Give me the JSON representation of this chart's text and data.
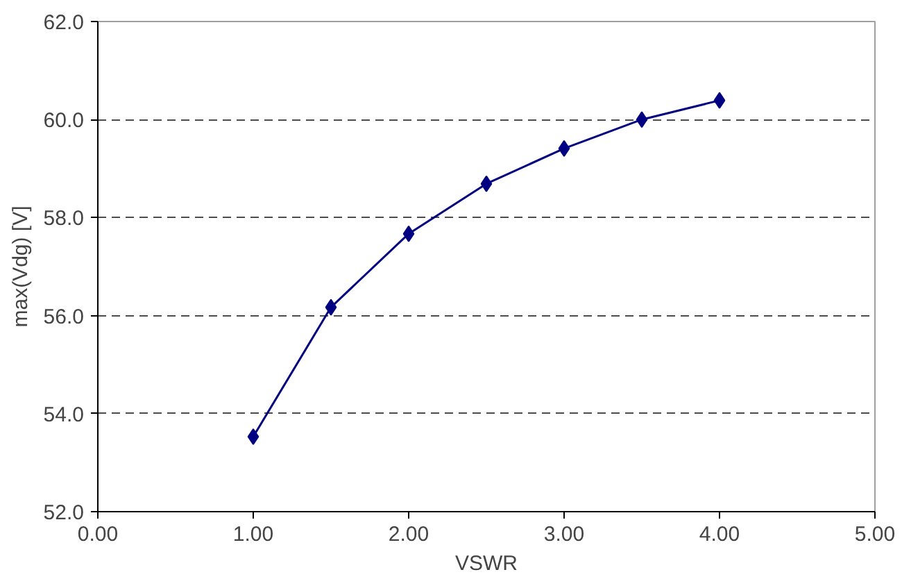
{
  "chart_data": {
    "type": "line",
    "xlabel": "VSWR",
    "ylabel": "max(Vdg) [V]",
    "x": [
      1.0,
      1.5,
      2.0,
      2.5,
      3.0,
      3.5,
      4.0
    ],
    "series": [
      {
        "color": "#000080",
        "values": [
          53.53,
          56.17,
          57.67,
          58.69,
          59.41,
          60.0,
          60.39
        ]
      }
    ],
    "xlim": [
      0,
      5
    ],
    "ylim": [
      52,
      62
    ],
    "xticks": [
      {
        "value": 0,
        "label": "0.00"
      },
      {
        "value": 1,
        "label": "1.00"
      },
      {
        "value": 2,
        "label": "2.00"
      },
      {
        "value": 3,
        "label": "3.00"
      },
      {
        "value": 4,
        "label": "4.00"
      },
      {
        "value": 5,
        "label": "5.00"
      }
    ],
    "yticks": [
      {
        "value": 52,
        "label": "52.0"
      },
      {
        "value": 54,
        "label": "54.0"
      },
      {
        "value": 56,
        "label": "56.0"
      },
      {
        "value": 58,
        "label": "58.0"
      },
      {
        "value": 60,
        "label": "60.0"
      },
      {
        "value": 62,
        "label": "62.0"
      }
    ],
    "grid": "y",
    "marker": "diamond",
    "line_style": "solid"
  }
}
